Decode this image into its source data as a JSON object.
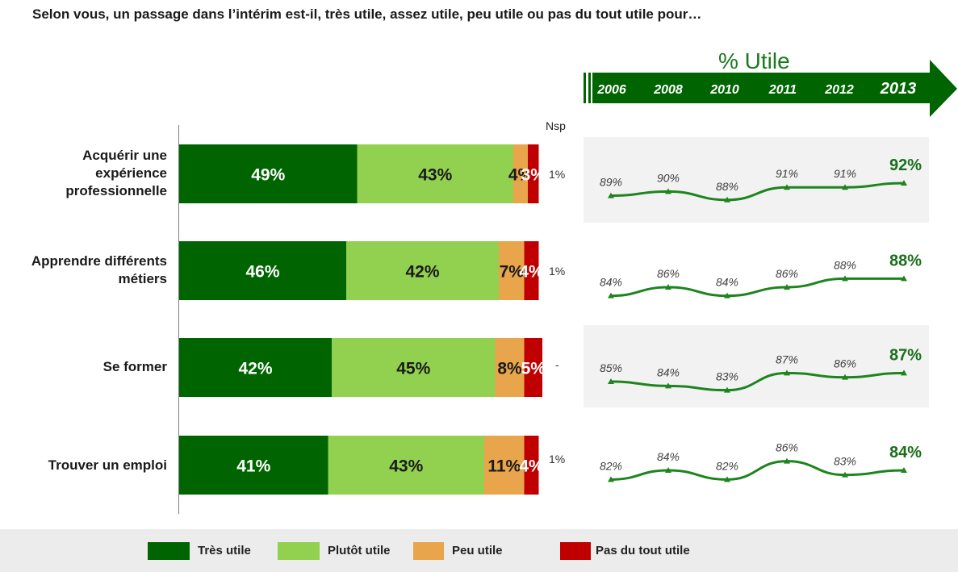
{
  "title": "Selon vous, un passage dans l’intérim est-il, très utile, assez utile, peu utile ou pas du tout utile pour…",
  "nsp_header": "Nsp",
  "utile_header": "% Utile",
  "colors": {
    "tres": "#006400",
    "plutot": "#92d050",
    "peu": "#e8a54b",
    "pas": "#c00000",
    "line": "#1e841e",
    "panel_bg": "#f2f2f2",
    "arrow": "#006400"
  },
  "chart_data": [
    {
      "type": "bar",
      "orientation": "horizontal",
      "stacked": true,
      "categories": [
        "Acquérir une expérience professionnelle",
        "Apprendre différents métiers",
        "Se former",
        "Trouver un emploi"
      ],
      "category_lines": [
        [
          "Acquérir une",
          "expérience",
          "professionnelle"
        ],
        [
          "Apprendre différents",
          "métiers"
        ],
        [
          "Se former"
        ],
        [
          "Trouver un emploi"
        ]
      ],
      "series": [
        {
          "name": "Très utile",
          "values": [
            49,
            46,
            42,
            41
          ],
          "labels": [
            "49%",
            "46%",
            "42%",
            "41%"
          ]
        },
        {
          "name": "Plutôt utile",
          "values": [
            43,
            42,
            45,
            43
          ],
          "labels": [
            "43%",
            "42%",
            "45%",
            "43%"
          ]
        },
        {
          "name": "Peu utile",
          "values": [
            4,
            7,
            8,
            11
          ],
          "labels": [
            "4%",
            "7%",
            "8%",
            "11%"
          ]
        },
        {
          "name": "Pas du tout utile",
          "values": [
            3,
            4,
            5,
            4
          ],
          "labels": [
            "3%",
            "4%",
            "5%",
            "4%"
          ]
        }
      ],
      "nsp": [
        "1%",
        "1%",
        "-",
        "1%"
      ],
      "legend": "bottom"
    },
    {
      "type": "line",
      "title": "% Utile",
      "x": [
        "2006",
        "2008",
        "2010",
        "2011",
        "2012",
        "2013"
      ],
      "series": [
        {
          "values": [
            89,
            90,
            88,
            91,
            91,
            92
          ],
          "labels": [
            "89%",
            "90%",
            "88%",
            "91%",
            "91%",
            "92%"
          ]
        },
        {
          "values": [
            84,
            86,
            84,
            86,
            88,
            88
          ],
          "labels": [
            "84%",
            "86%",
            "84%",
            "86%",
            "88%",
            "88%"
          ]
        },
        {
          "values": [
            85,
            84,
            83,
            87,
            86,
            87
          ],
          "labels": [
            "85%",
            "84%",
            "83%",
            "87%",
            "86%",
            "87%"
          ]
        },
        {
          "values": [
            82,
            84,
            82,
            86,
            83,
            84
          ],
          "labels": [
            "82%",
            "84%",
            "82%",
            "86%",
            "83%",
            "84%"
          ]
        }
      ]
    }
  ]
}
